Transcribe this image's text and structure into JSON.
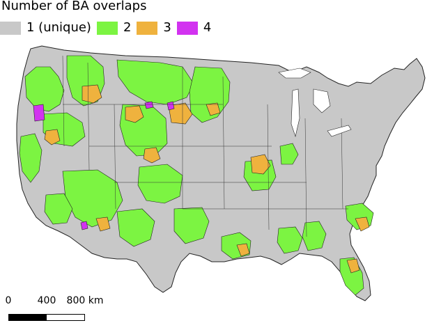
{
  "legend": {
    "title": "Number of BA overlaps",
    "items": [
      {
        "label": "1 (unique)",
        "color": "#c8c8c8"
      },
      {
        "label": "2",
        "color": "#7cf442"
      },
      {
        "label": "3",
        "color": "#efb23e"
      },
      {
        "label": "4",
        "color": "#d232f0"
      }
    ]
  },
  "scale": {
    "ticks": [
      "0",
      "400",
      "800 km"
    ],
    "segment_colors": [
      "#000000",
      "#ffffff"
    ]
  },
  "map_style": {
    "land": "#c8c8c8",
    "border": "#222222",
    "water": "#ffffff"
  }
}
